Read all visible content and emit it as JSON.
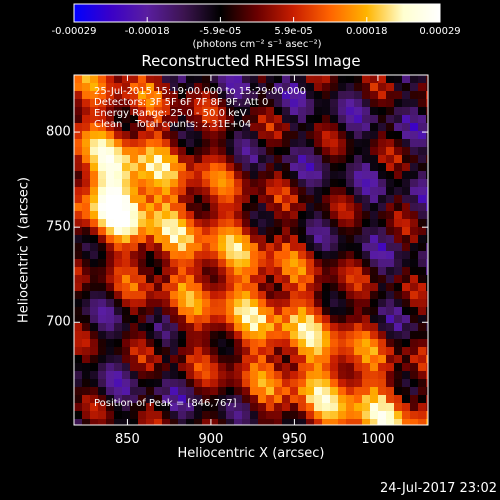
{
  "chart_data": {
    "type": "heatmap",
    "title": "Reconstructed RHESSI Image",
    "xlabel": "Heliocentric X (arcsec)",
    "ylabel": "Heliocentric Y (arcsec)",
    "xlim": [
      818,
      1030
    ],
    "ylim": [
      646,
      830
    ],
    "x_ticks": [
      850,
      900,
      950,
      1000
    ],
    "y_ticks": [
      700,
      750,
      800
    ],
    "colorbar": {
      "min": -0.00029,
      "max": 0.00029,
      "tick_labels": [
        "-0.00029",
        "-0.00018",
        "-5.9e-05",
        "5.9e-05",
        "0.00018",
        "0.00029"
      ],
      "units_label": "(photons cm⁻² s⁻¹ asec⁻²)",
      "colors": [
        "#0000ff",
        "#3a00c8",
        "#5a1ea0",
        "#3c1450",
        "#000000",
        "#6a0000",
        "#c81e00",
        "#ff6400",
        "#ffb400",
        "#ffffd0",
        "#ffffff"
      ]
    },
    "annotations": {
      "time_range": "25-Jul-2015 15:19:00.000 to 15:29:00.000",
      "detectors": "Detectors: 3F 5F 6F 7F 8F 9F, Att 0",
      "energy_range": "Energy Range: 25.0 - 50.0 keV",
      "algorithm": "Clean    Total counts: 2.31E+04",
      "peak": "Position of Peak = [846,767]"
    },
    "peak_position": [
      846,
      767
    ],
    "grid": false
  },
  "footer": {
    "timestamp": "24-Jul-2017 23:02"
  }
}
